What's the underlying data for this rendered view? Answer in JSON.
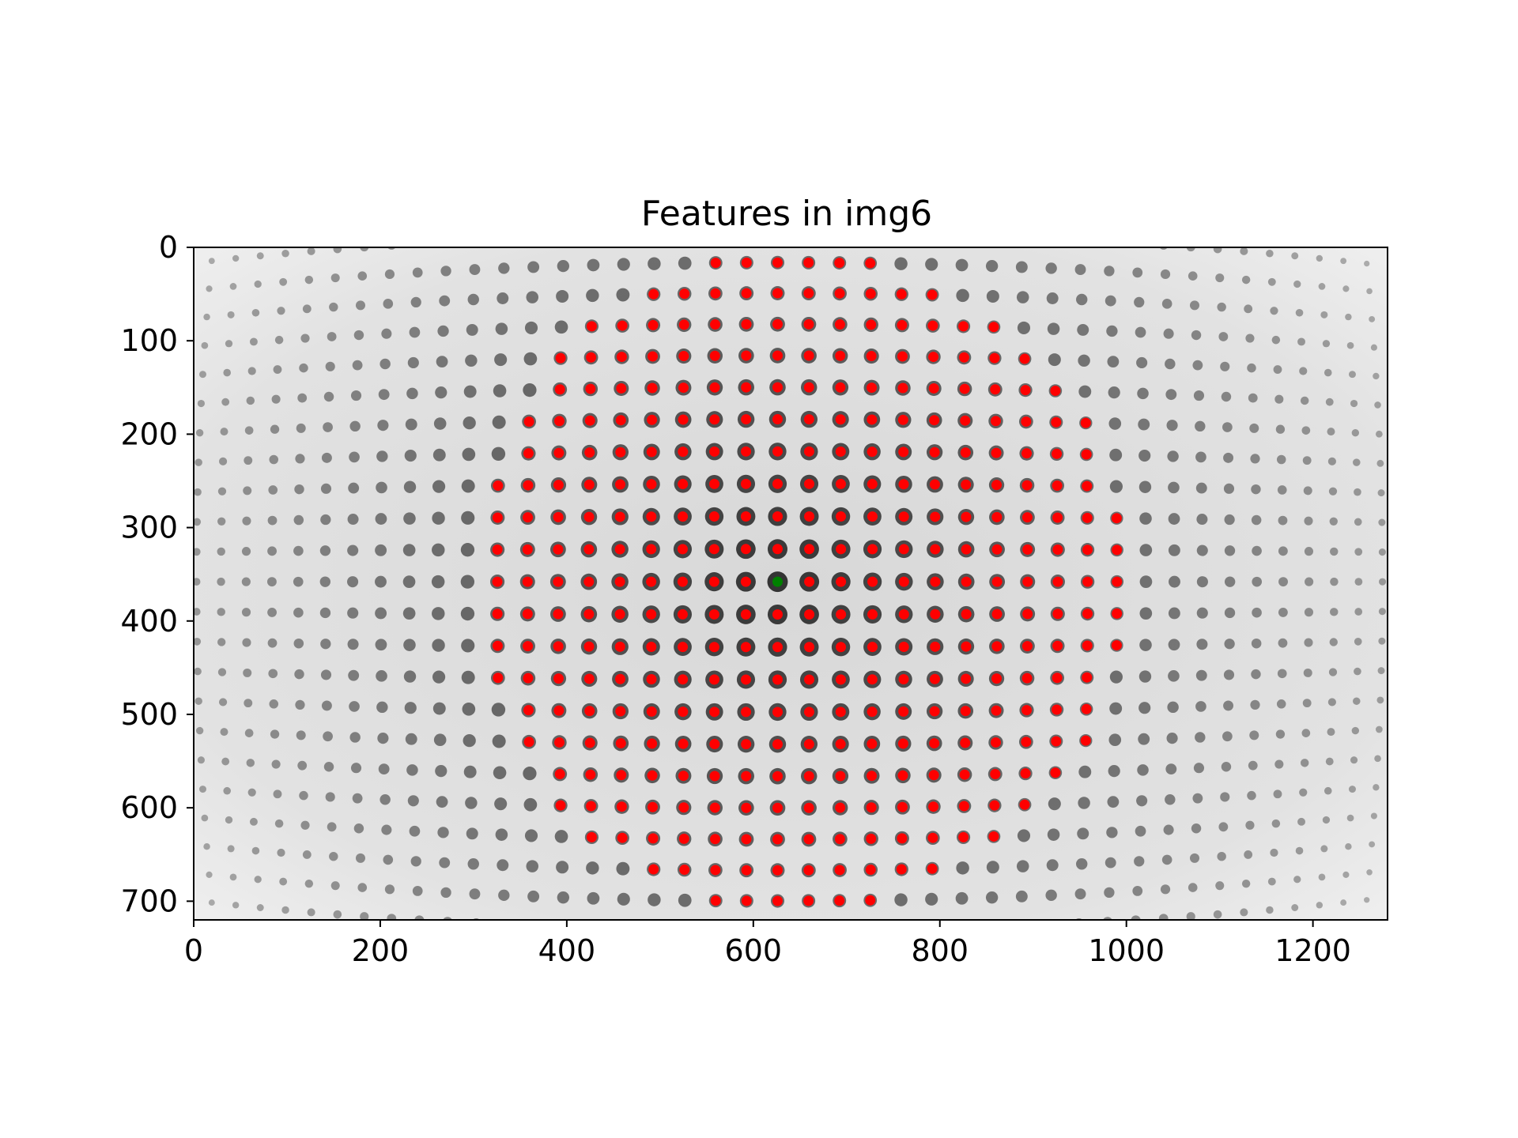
{
  "chart_data": {
    "type": "scatter",
    "title": "Features in img6",
    "xlabel": "",
    "ylabel": "",
    "xlim": [
      0,
      1280
    ],
    "ylim": [
      720,
      0
    ],
    "x_ticks": [
      "0",
      "200",
      "400",
      "600",
      "800",
      "1000",
      "1200"
    ],
    "y_ticks": [
      "0",
      "100",
      "200",
      "300",
      "400",
      "500",
      "600",
      "700"
    ],
    "grid": false,
    "legend": "none",
    "background": "grayscale fisheye image of a dot calibration grid",
    "colors": {
      "feature": "#ff0000",
      "center": "#008000",
      "background_light": "#dddddd",
      "dot_dark": "#222222"
    },
    "center_point": {
      "x": 626,
      "y": 358
    },
    "feature_grid": {
      "center": [
        626,
        358
      ],
      "spacing_x": 34,
      "spacing_y": 35,
      "i_range": [
        -9,
        11
      ],
      "j_range": [
        -10,
        10
      ],
      "distortion_k": 2.2e-07
    }
  }
}
